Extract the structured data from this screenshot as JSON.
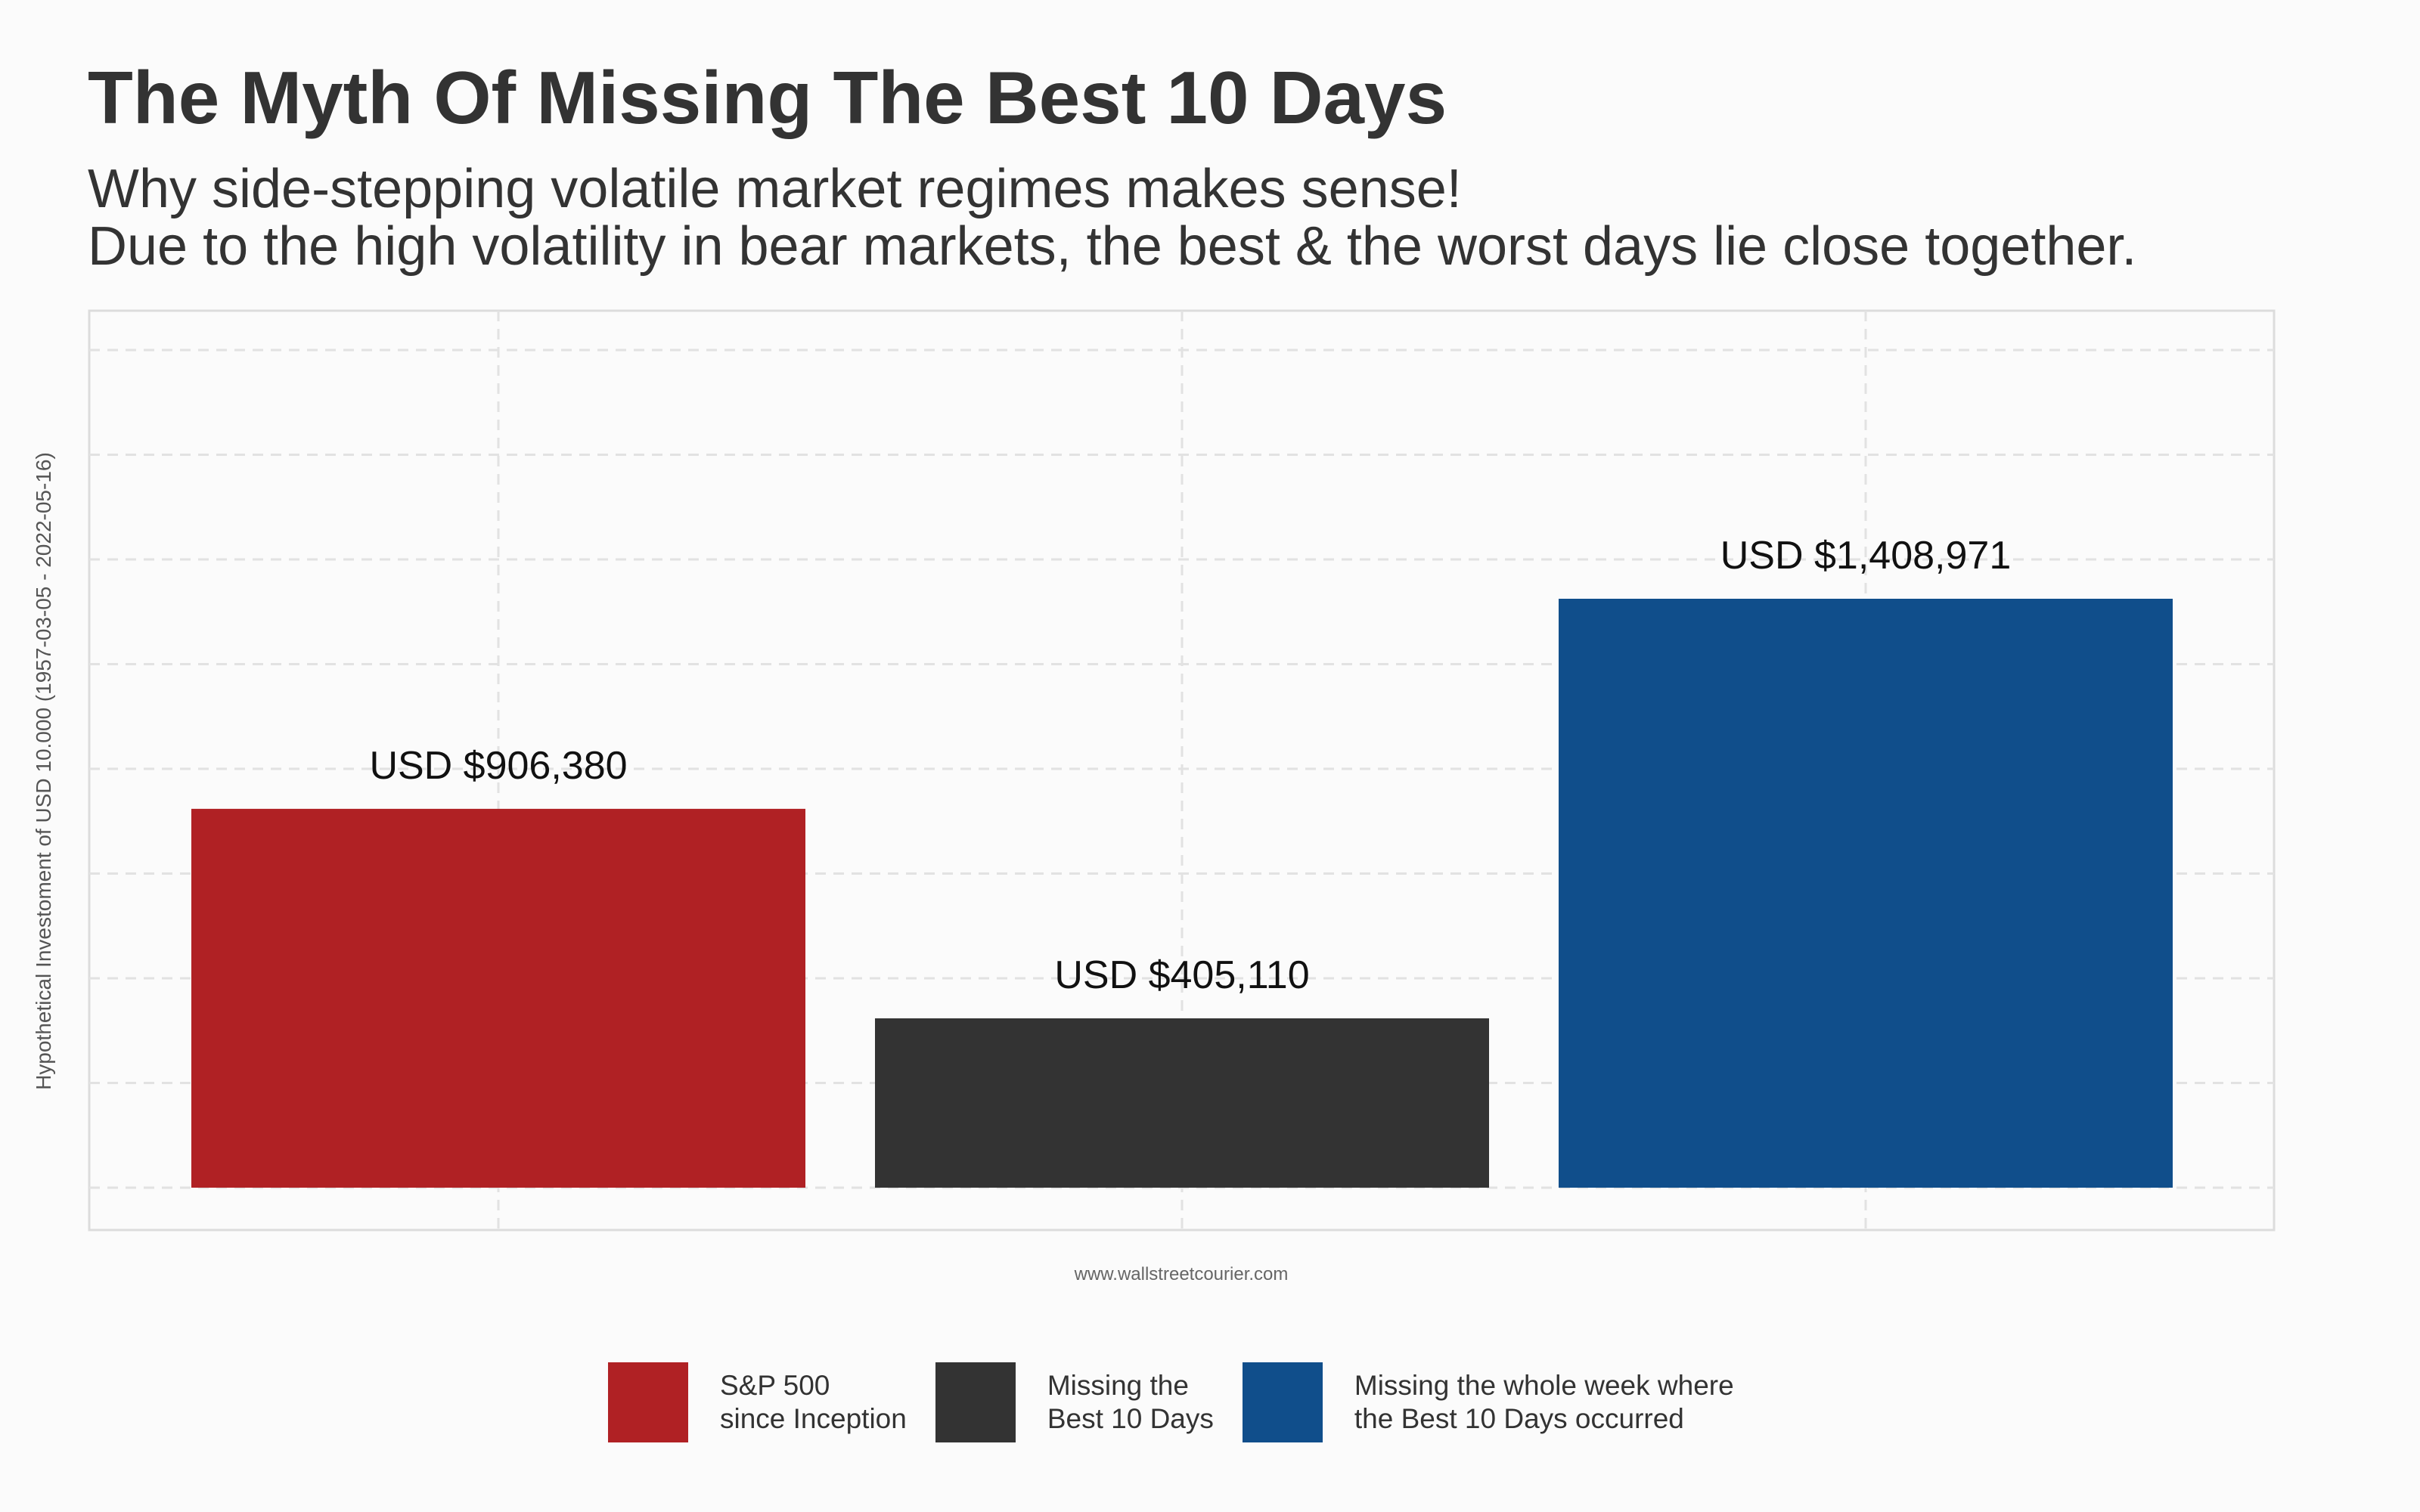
{
  "title": "The Myth Of Missing The Best 10 Days",
  "subtitle": {
    "line1": "Why side-stepping volatile market regimes makes sense!",
    "line2": "Due to the high volatility in bear markets, the best & the worst days lie close together."
  },
  "caption": "www.wallstreetcourier.com",
  "chart_data": {
    "type": "bar",
    "title": "The Myth Of Missing The Best 10 Days",
    "xlabel": "",
    "ylabel": "Hypothetical Investoment of USD 10.000 (1957-03-05 - 2022-05-16)",
    "categories": [
      "S&P 500 since Inception",
      "Missing the Best 10 Days",
      "Missing the whole week where the Best 10 Days occurred"
    ],
    "values": [
      906380,
      405110,
      1408971
    ],
    "data_labels": [
      "USD $906,380",
      "USD $405,110",
      "USD $1,408,971"
    ],
    "colors": [
      "#b02124",
      "#333333",
      "#104e8b"
    ],
    "ylim": [
      -100000,
      1950000
    ],
    "grid": true,
    "legend_position": "bottom",
    "legend": [
      {
        "line1": "S&P 500",
        "line2": "since Inception",
        "color": "#b02124"
      },
      {
        "line1": "Missing the",
        "line2": "Best 10 Days",
        "color": "#333333"
      },
      {
        "line1": "Missing the whole week where",
        "line2": "the Best 10 Days occurred",
        "color": "#104e8b"
      }
    ]
  }
}
